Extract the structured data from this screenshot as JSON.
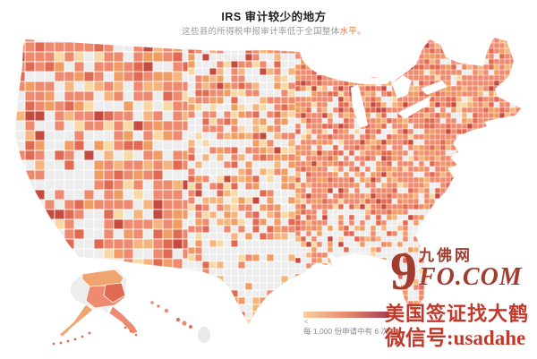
{
  "header": {
    "title": "IRS 审计较少的地方",
    "subtitle": "这些县的所得税申报审计率低于全国整体",
    "subtitle_highlight": "水平。"
  },
  "legend": {
    "marker": "<",
    "caption": "每 1,000 份申请中有 6 次",
    "gradient_start": "#f7cda0",
    "gradient_mid": "#e98d6f",
    "gradient_end": "#a63d55"
  },
  "watermark": {
    "logo_number": "9",
    "logo_cn": "九佛网",
    "logo_domain": "FO.COM",
    "logo_color": "#a23c31",
    "tagline": "美国签证找大鹤",
    "wechat": "微信号:usadahe",
    "text_color": "#c2392b"
  },
  "map": {
    "description": "United States county choropleth, counties with audit rates below national level shaded orange-red; counties above shaded gray",
    "palette": {
      "no_data": "#ededed",
      "peach": "#f8d9a6",
      "light_orange": "#f5b57e",
      "orange": "#f09d63",
      "salmon": "#ed8a6f",
      "deep_salmon": "#e06a52",
      "dark_red": "#c44b40",
      "border": "#ffffff",
      "water": "#ffffff"
    }
  }
}
